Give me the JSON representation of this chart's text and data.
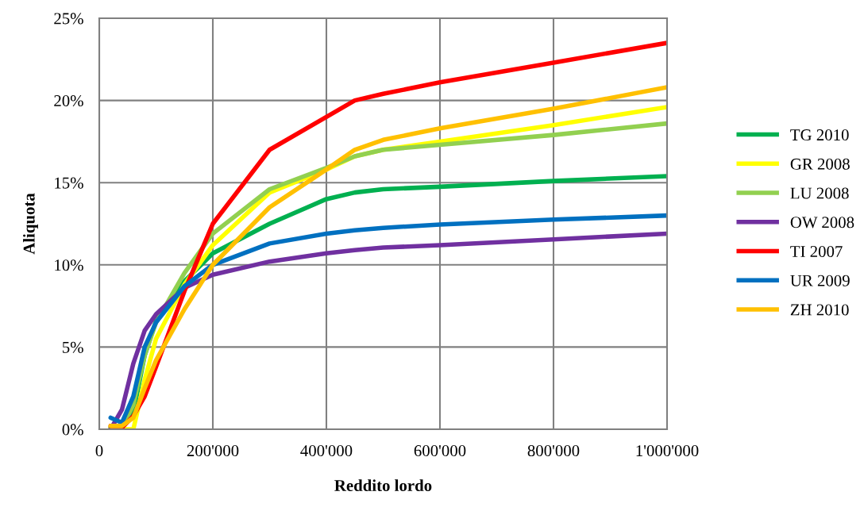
{
  "chart_data": {
    "type": "line",
    "xlabel": "Reddito lordo",
    "ylabel": "Aliquota",
    "x": [
      20000,
      40000,
      60000,
      80000,
      100000,
      150000,
      200000,
      300000,
      400000,
      450000,
      500000,
      600000,
      800000,
      1000000
    ],
    "series": [
      {
        "name": "TG 2010",
        "color": "#00b050",
        "values": [
          0.1,
          0.1,
          1.0,
          4.5,
          6.6,
          9.0,
          10.7,
          12.5,
          14.0,
          14.4,
          14.6,
          14.75,
          15.1,
          15.4
        ]
      },
      {
        "name": "GR 2008",
        "color": "#ffff00",
        "values": [
          0.1,
          0,
          0,
          3.0,
          5.5,
          8.8,
          11.2,
          14.4,
          15.8,
          16.6,
          17.0,
          17.5,
          18.5,
          19.6
        ]
      },
      {
        "name": "LU 2008",
        "color": "#92d050",
        "values": [
          0.1,
          0.1,
          1.5,
          4.5,
          6.5,
          9.5,
          11.9,
          14.6,
          15.9,
          16.6,
          17.0,
          17.3,
          17.9,
          18.6
        ]
      },
      {
        "name": "OW 2008",
        "color": "#7030a0",
        "values": [
          0.0,
          1.2,
          4.0,
          6.0,
          7.0,
          8.6,
          9.4,
          10.2,
          10.7,
          10.9,
          11.05,
          11.2,
          11.55,
          11.9
        ]
      },
      {
        "name": "TI 2007",
        "color": "#ff0000",
        "values": [
          0.2,
          0.1,
          0.8,
          2.0,
          3.8,
          8.4,
          12.5,
          17.0,
          19.0,
          20.0,
          20.4,
          21.1,
          22.3,
          23.5
        ]
      },
      {
        "name": "UR 2009",
        "color": "#0070c0",
        "values": [
          0.7,
          0.4,
          2.0,
          5.0,
          6.5,
          8.7,
          10.0,
          11.3,
          11.9,
          12.1,
          12.25,
          12.45,
          12.75,
          13.0
        ]
      },
      {
        "name": "ZH 2010",
        "color": "#ffc000",
        "values": [
          0.2,
          0.2,
          0.7,
          2.5,
          4.2,
          7.3,
          10.0,
          13.5,
          15.8,
          17.0,
          17.6,
          18.3,
          19.5,
          20.8
        ]
      }
    ],
    "xlim": [
      0,
      1000000
    ],
    "xticks": [
      {
        "value": 0,
        "label": "0"
      },
      {
        "value": 200000,
        "label": "200'000"
      },
      {
        "value": 400000,
        "label": "400'000"
      },
      {
        "value": 600000,
        "label": "600'000"
      },
      {
        "value": 800000,
        "label": "800'000"
      },
      {
        "value": 1000000,
        "label": "1'000'000"
      }
    ],
    "ylim": [
      0,
      25
    ],
    "yticks": [
      {
        "value": 0,
        "label": "0%"
      },
      {
        "value": 5,
        "label": "5%"
      },
      {
        "value": 10,
        "label": "10%"
      },
      {
        "value": 15,
        "label": "15%"
      },
      {
        "value": 20,
        "label": "20%"
      },
      {
        "value": 25,
        "label": "25%"
      }
    ],
    "grid": true,
    "legend": "right",
    "marker": "none",
    "line_style": "solid"
  }
}
